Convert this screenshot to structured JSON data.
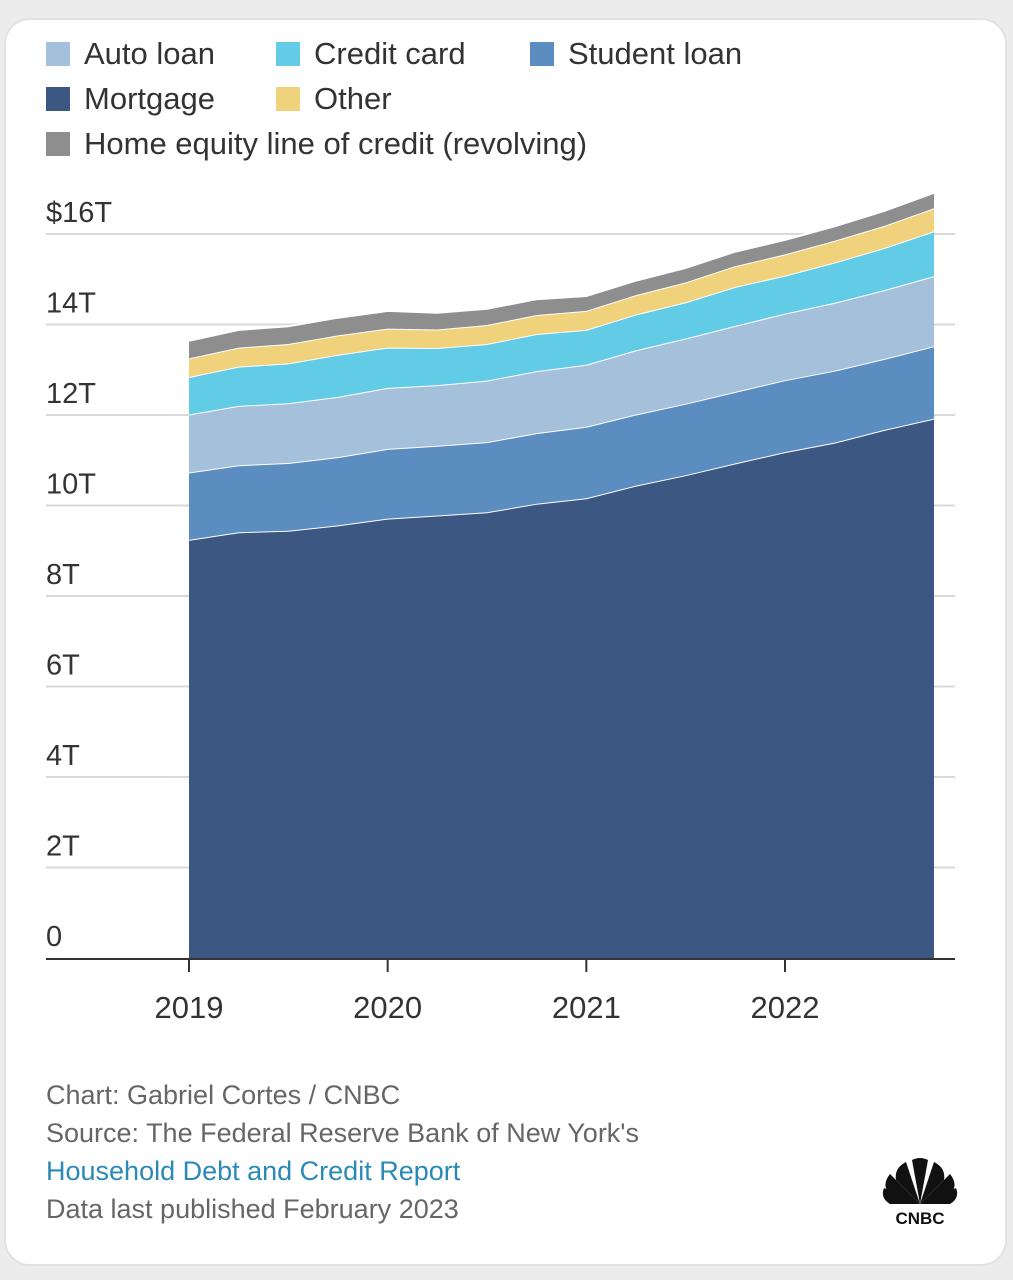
{
  "chart_data": {
    "type": "area",
    "stacked": true,
    "title": "",
    "xlabel": "",
    "ylabel": "",
    "ylim": [
      0,
      16
    ],
    "yticks": [
      0,
      2,
      4,
      6,
      8,
      10,
      12,
      14,
      16
    ],
    "ytick_labels": [
      "0",
      "2T",
      "4T",
      "6T",
      "8T",
      "10T",
      "12T",
      "14T",
      "$16T"
    ],
    "xticks": [
      "2019",
      "2020",
      "2021",
      "2022"
    ],
    "grid": true,
    "legend_position": "top",
    "x": [
      "2019-Q1",
      "2019-Q2",
      "2019-Q3",
      "2019-Q4",
      "2020-Q1",
      "2020-Q2",
      "2020-Q3",
      "2020-Q4",
      "2021-Q1",
      "2021-Q2",
      "2021-Q3",
      "2021-Q4",
      "2022-Q1",
      "2022-Q2",
      "2022-Q3",
      "2022-Q4"
    ],
    "series": [
      {
        "name": "Mortgage",
        "color": "#3c5782",
        "values": [
          9.24,
          9.41,
          9.44,
          9.56,
          9.71,
          9.78,
          9.85,
          10.04,
          10.16,
          10.44,
          10.67,
          10.93,
          11.18,
          11.39,
          11.67,
          11.92
        ]
      },
      {
        "name": "Student loan",
        "color": "#5b8dc0",
        "values": [
          1.49,
          1.48,
          1.5,
          1.51,
          1.54,
          1.54,
          1.55,
          1.56,
          1.58,
          1.57,
          1.58,
          1.58,
          1.59,
          1.59,
          1.57,
          1.6
        ]
      },
      {
        "name": "Auto loan",
        "color": "#a4c0db",
        "values": [
          1.28,
          1.31,
          1.32,
          1.33,
          1.35,
          1.34,
          1.36,
          1.37,
          1.37,
          1.42,
          1.44,
          1.46,
          1.47,
          1.5,
          1.52,
          1.55
        ]
      },
      {
        "name": "Credit card",
        "color": "#62cbe5",
        "values": [
          0.83,
          0.87,
          0.88,
          0.93,
          0.89,
          0.82,
          0.81,
          0.82,
          0.77,
          0.79,
          0.8,
          0.86,
          0.84,
          0.89,
          0.93,
          0.99
        ]
      },
      {
        "name": "Other",
        "color": "#f1d27c",
        "values": [
          0.41,
          0.42,
          0.43,
          0.43,
          0.42,
          0.41,
          0.42,
          0.42,
          0.42,
          0.43,
          0.44,
          0.46,
          0.47,
          0.48,
          0.49,
          0.51
        ]
      },
      {
        "name": "Home equity line of credit (revolving)",
        "color": "#8e8e8e",
        "values": [
          0.39,
          0.39,
          0.39,
          0.39,
          0.39,
          0.37,
          0.36,
          0.35,
          0.33,
          0.32,
          0.32,
          0.32,
          0.32,
          0.32,
          0.33,
          0.34
        ]
      }
    ]
  },
  "legend": [
    {
      "label": "Auto loan",
      "color": "#a4c0db"
    },
    {
      "label": "Credit card",
      "color": "#62cbe5"
    },
    {
      "label": "Student loan",
      "color": "#5b8dc0"
    },
    {
      "label": "Mortgage",
      "color": "#3c5782"
    },
    {
      "label": "Other",
      "color": "#f1d27c"
    },
    {
      "label": "Home equity line of credit (revolving)",
      "color": "#8e8e8e"
    }
  ],
  "footer": {
    "credit": "Chart: Gabriel Cortes / CNBC",
    "source": "Source: The Federal Reserve Bank of New York's",
    "link": "Household Debt and Credit Report",
    "published": "Data last published February 2023"
  },
  "logo": {
    "icon": "nbc-peacock-icon",
    "text": "CNBC"
  }
}
